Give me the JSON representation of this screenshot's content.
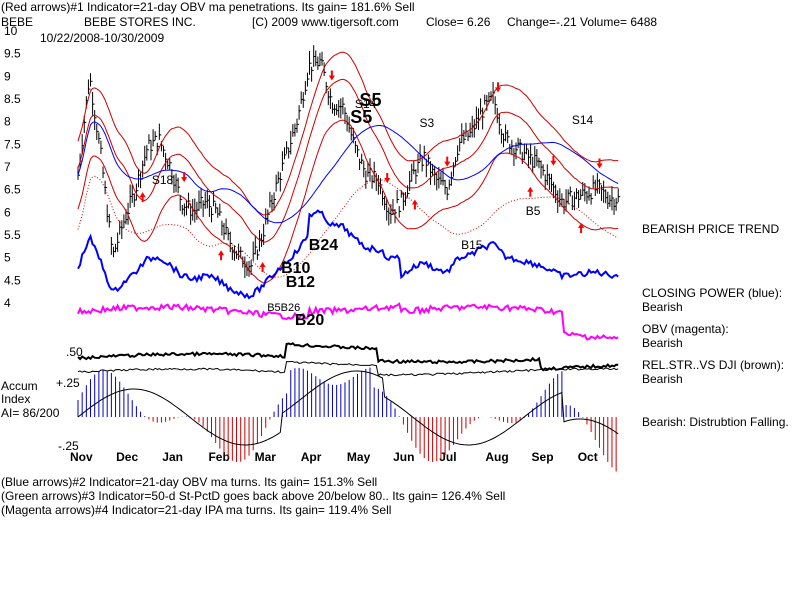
{
  "header": {
    "line1": "(Red arrows)#1 Indicator=21-day OBV ma penetrations.  Its gain= 181.6% Sell",
    "ticker": "BEBE",
    "company": "BEBE STORES INC.",
    "copyright": "[C) 2009 www.tigersoft.com",
    "close": "Close=  6.26",
    "change": "Change=-.21",
    "volume": "Volume= 6488",
    "date_range": "10/22/2008-10/30/2009"
  },
  "footer": {
    "line1": "(Blue arrows)#2 Indicator=21-day OBV ma turns.  Its gain= 151.3% Sell",
    "line2": "(Green arrows)#3 Indicator=50-d St-PctD goes back above 20/below 80..  Its gain= 126.4% Sell",
    "line3": "(Magenta arrows)#4 Indicator=21-day IPA ma turns.  Its gain= 119.4% Sell"
  },
  "side_labels": {
    "trend": "BEARISH PRICE TREND",
    "cp_title": "CLOSING POWER (blue):",
    "cp_value": "Bearish",
    "obv_title": "OBV (magenta):",
    "obv_value": "Bearish",
    "rs_title": "REL.STR..VS DJI (brown):",
    "rs_value": "Bearish",
    "accum_status": "Bearish:  Distrubtion Falling."
  },
  "accum_labels": {
    "title1": "Accum",
    "title2": "Index",
    "ai": "AI= 86/200",
    "plus50": ".50",
    "plus25": "+.25",
    "minus25": "-.25"
  },
  "colors": {
    "price": "#000000",
    "bands": "#cc0000",
    "ma50": "#0000ff",
    "closing_power": "#0000ff",
    "obv": "#ff00ff",
    "rel_strength": "#000000",
    "accum_pos": "#0000cc",
    "accum_neg": "#cc0000",
    "signal": "#ff0000"
  },
  "chart_data": {
    "type": "line",
    "title": "BEBE STORES INC.",
    "y_ticks": [
      "10",
      "9.5",
      "9",
      "8.5",
      "8",
      "7.5",
      "7",
      "6.5",
      "6",
      "5.5",
      "5",
      "4.5",
      "4"
    ],
    "ylim": [
      4,
      10
    ],
    "x_ticks": [
      "Nov",
      "Dec",
      "Jan",
      "Feb",
      "Mar",
      "Apr",
      "May",
      "Jun",
      "Jul",
      "Aug",
      "Sep",
      "Oct"
    ],
    "series": [
      {
        "x": [
          0,
          0.25,
          0.5,
          0.75,
          1,
          1.25,
          1.5,
          1.75,
          2,
          2.25,
          2.5,
          2.75,
          3,
          3.25,
          3.5,
          3.75,
          4,
          4.25,
          4.5,
          4.75,
          5,
          5.25,
          5.5,
          5.75,
          6,
          6.25,
          6.5,
          6.75,
          7,
          7.25,
          7.5,
          7.75,
          8,
          8.25,
          8.5,
          8.75,
          9,
          9.25,
          9.5,
          9.75,
          10,
          10.25,
          10.5,
          10.75,
          11,
          11.25,
          11.5,
          11.75
        ],
        "values": [
          6.8,
          9.0,
          7.2,
          5.0,
          5.8,
          6.5,
          7.4,
          7.6,
          7.0,
          6.2,
          6.0,
          6.2,
          6.0,
          5.4,
          5.0,
          4.8,
          5.5,
          6.4,
          7.2,
          8.0,
          9.2,
          9.3,
          8.4,
          8.3,
          7.4,
          6.8,
          6.7,
          6.0,
          6.2,
          6.8,
          7.2,
          6.7,
          6.5,
          7.5,
          7.7,
          8.2,
          8.5,
          7.6,
          7.4,
          7.2,
          7.0,
          6.6,
          6.2,
          6.3,
          6.4,
          6.5,
          6.3,
          6.26
        ]
      }
    ],
    "signal_labels": [
      "S18",
      "S5",
      "S5",
      "S14",
      "S3",
      "S14",
      "B5",
      "B15",
      "B24",
      "B10",
      "B12",
      "B20",
      "B5B26"
    ]
  }
}
